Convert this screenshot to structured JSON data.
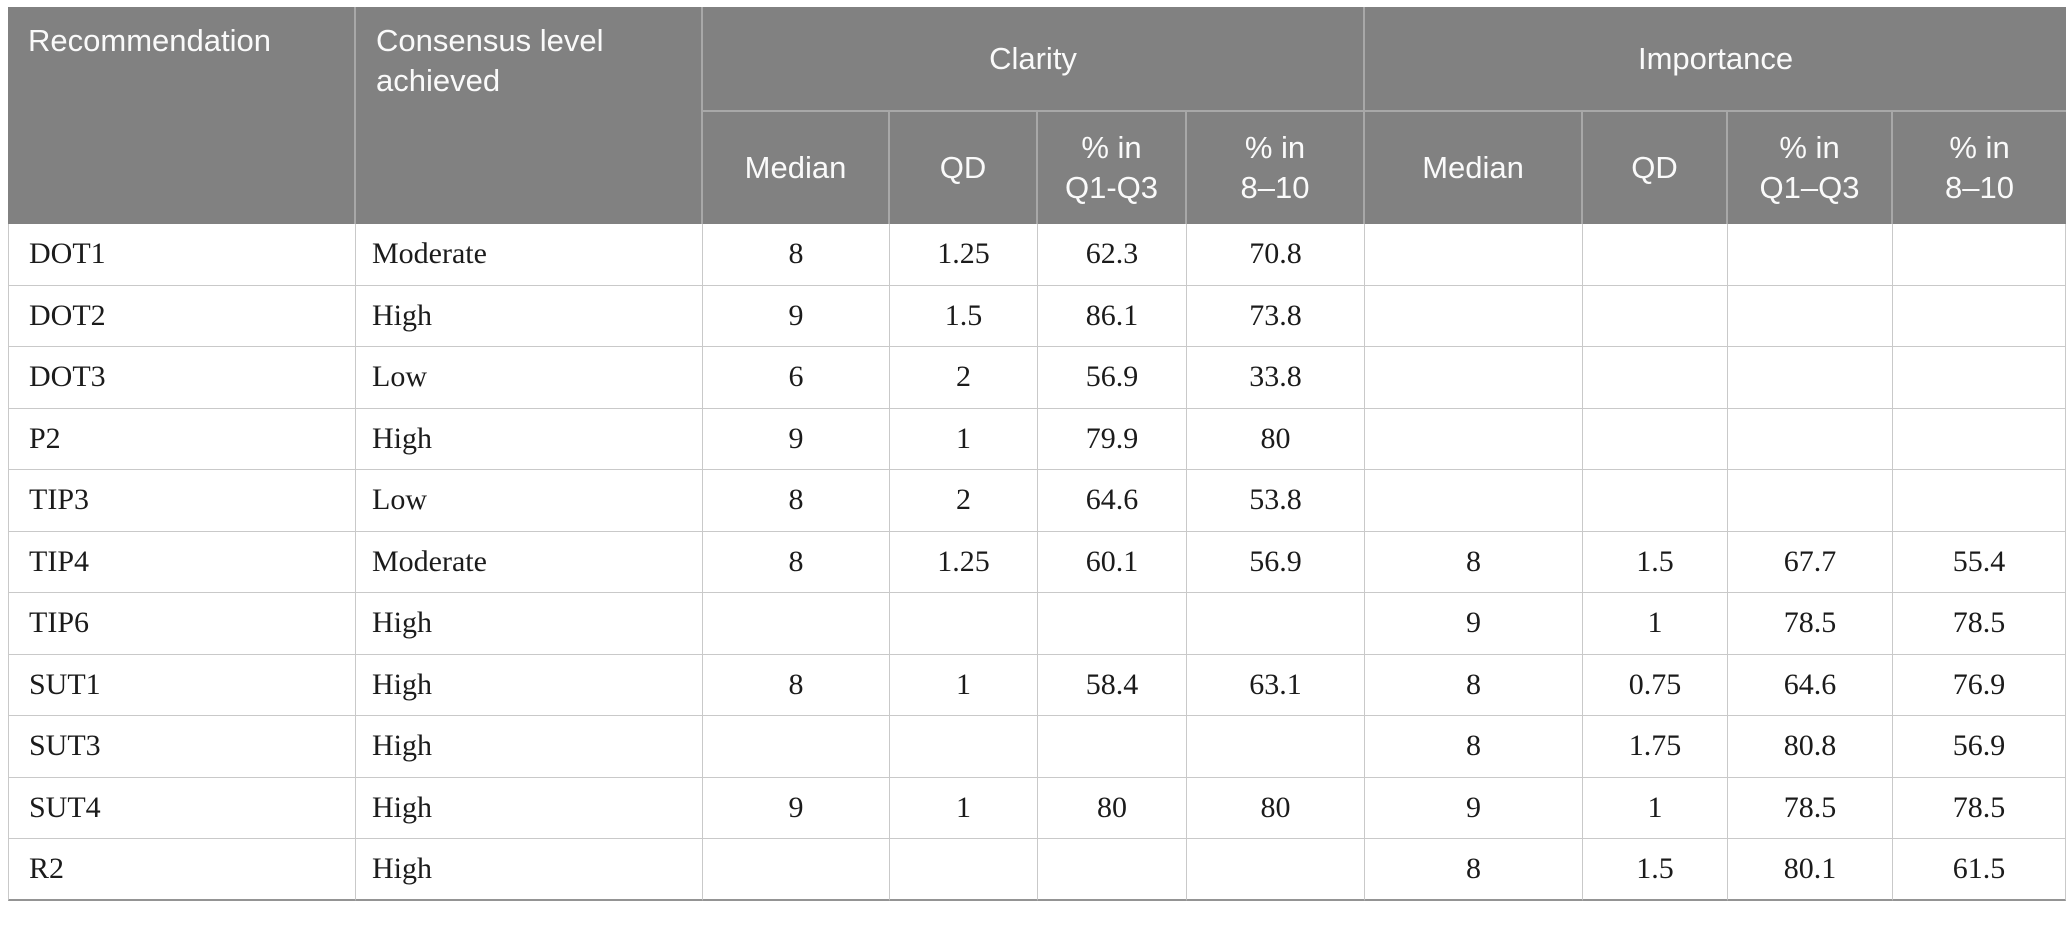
{
  "table": {
    "header": {
      "recommendation": "Recommendation",
      "consensus": "Consensus level achieved",
      "groups": [
        {
          "label": "Clarity",
          "subs": [
            "Median",
            "QD",
            "% in\nQ1-Q3",
            "% in\n8–10"
          ]
        },
        {
          "label": "Importance",
          "subs": [
            "Median",
            "QD",
            "% in\nQ1–Q3",
            "% in\n8–10"
          ]
        }
      ]
    },
    "rows": [
      {
        "cells": [
          "DOT1",
          "Moderate",
          "8",
          "1.25",
          "62.3",
          "70.8",
          "",
          "",
          "",
          ""
        ]
      },
      {
        "cells": [
          "DOT2",
          "High",
          "9",
          "1.5",
          "86.1",
          "73.8",
          "",
          "",
          "",
          ""
        ]
      },
      {
        "cells": [
          "DOT3",
          "Low",
          "6",
          "2",
          "56.9",
          "33.8",
          "",
          "",
          "",
          ""
        ]
      },
      {
        "cells": [
          "P2",
          "High",
          "9",
          "1",
          "79.9",
          "80",
          "",
          "",
          "",
          ""
        ]
      },
      {
        "cells": [
          "TIP3",
          "Low",
          "8",
          "2",
          "64.6",
          "53.8",
          "",
          "",
          "",
          ""
        ]
      },
      {
        "cells": [
          "TIP4",
          "Moderate",
          "8",
          "1.25",
          "60.1",
          "56.9",
          "8",
          "1.5",
          "67.7",
          "55.4"
        ]
      },
      {
        "cells": [
          "TIP6",
          "High",
          "",
          "",
          "",
          "",
          "9",
          "1",
          "78.5",
          "78.5"
        ]
      },
      {
        "cells": [
          "SUT1",
          "High",
          "8",
          "1",
          "58.4",
          "63.1",
          "8",
          "0.75",
          "64.6",
          "76.9"
        ]
      },
      {
        "cells": [
          "SUT3",
          "High",
          "",
          "",
          "",
          "",
          "8",
          "1.75",
          "80.8",
          "56.9"
        ]
      },
      {
        "cells": [
          "SUT4",
          "High",
          "9",
          "1",
          "80",
          "80",
          "9",
          "1",
          "78.5",
          "78.5"
        ]
      },
      {
        "cells": [
          "R2",
          "High",
          "",
          "",
          "",
          "",
          "8",
          "1.5",
          "80.1",
          "61.5"
        ]
      }
    ],
    "colors": {
      "header_bg": "#818181",
      "header_text": "#fafafa",
      "header_divider": "#a8a8a8",
      "body_border": "#c9c9c9",
      "bottom_border": "#949494",
      "body_text": "#1b1b1b"
    }
  }
}
